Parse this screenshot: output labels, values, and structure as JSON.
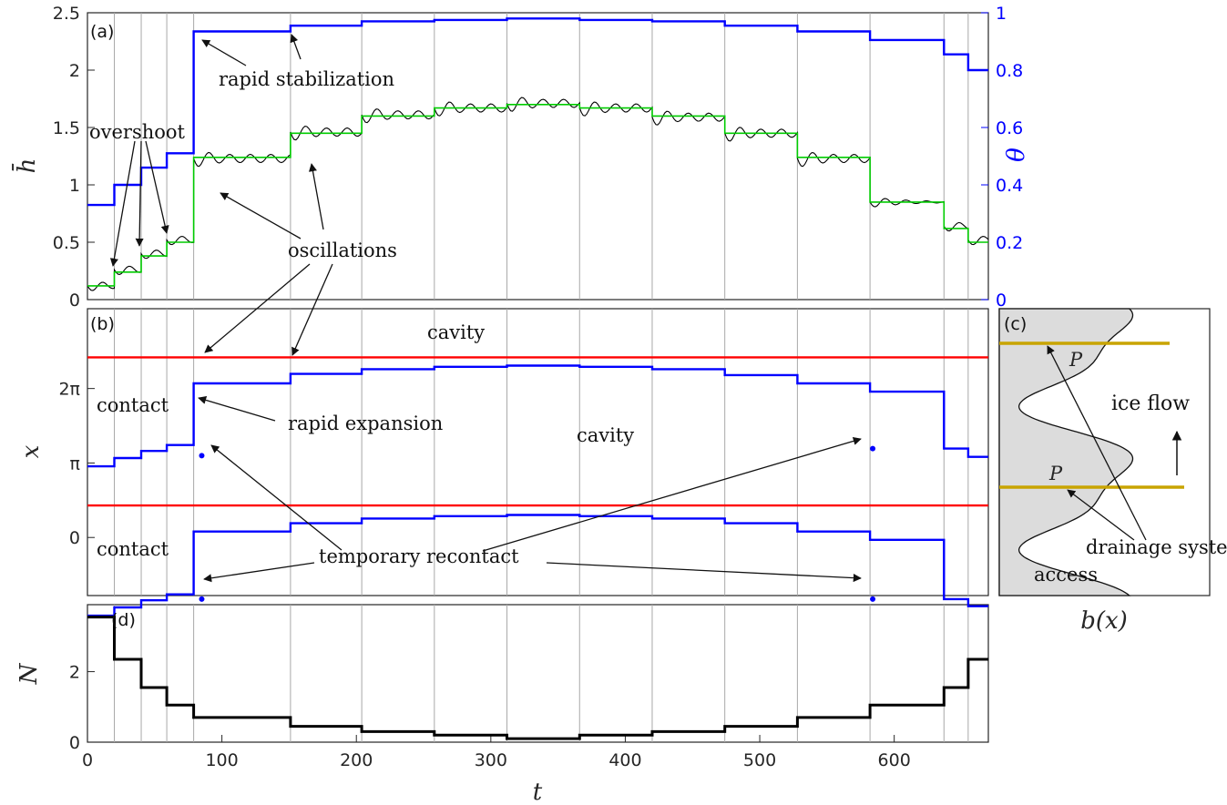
{
  "chart_data": [
    {
      "panel": "(a)",
      "type": "line",
      "xlabel": "",
      "ylabel": "h̄",
      "ylabel_right": "θ",
      "xlim": [
        0,
        670
      ],
      "ylim": [
        0,
        2.5
      ],
      "ylim_right": [
        0,
        1
      ],
      "yticks": [
        "0",
        "0.5",
        "1",
        "1.5",
        "2",
        "2.5"
      ],
      "yticks_right": [
        "0",
        "0.2",
        "0.4",
        "0.6",
        "0.8",
        "1"
      ],
      "switch_times": [
        20,
        40,
        59,
        79,
        151,
        204,
        258,
        312,
        366,
        420,
        474,
        528,
        582,
        637,
        655
      ],
      "series": [
        {
          "color": "#0000ff",
          "axis": "right",
          "steps": [
            {
              "t0": 0,
              "t1": 20,
              "v": 0.33
            },
            {
              "t0": 20,
              "t1": 40,
              "v": 0.4
            },
            {
              "t0": 40,
              "t1": 59,
              "v": 0.46
            },
            {
              "t0": 59,
              "t1": 79,
              "v": 0.51
            },
            {
              "t0": 79,
              "t1": 151,
              "v": 0.935
            },
            {
              "t0": 151,
              "t1": 204,
              "v": 0.955
            },
            {
              "t0": 204,
              "t1": 258,
              "v": 0.97
            },
            {
              "t0": 258,
              "t1": 312,
              "v": 0.975
            },
            {
              "t0": 312,
              "t1": 366,
              "v": 0.98
            },
            {
              "t0": 366,
              "t1": 420,
              "v": 0.975
            },
            {
              "t0": 420,
              "t1": 474,
              "v": 0.97
            },
            {
              "t0": 474,
              "t1": 528,
              "v": 0.955
            },
            {
              "t0": 528,
              "t1": 582,
              "v": 0.935
            },
            {
              "t0": 582,
              "t1": 637,
              "v": 0.905
            },
            {
              "t0": 637,
              "t1": 655,
              "v": 0.855
            },
            {
              "t0": 655,
              "t1": 670,
              "v": 0.8
            }
          ]
        },
        {
          "color": "#00cc00",
          "axis": "left",
          "steps": [
            {
              "t0": 0,
              "t1": 20,
              "v": 0.12
            },
            {
              "t0": 20,
              "t1": 40,
              "v": 0.24
            },
            {
              "t0": 40,
              "t1": 59,
              "v": 0.38
            },
            {
              "t0": 59,
              "t1": 79,
              "v": 0.5
            },
            {
              "t0": 79,
              "t1": 151,
              "v": 1.24
            },
            {
              "t0": 151,
              "t1": 204,
              "v": 1.45
            },
            {
              "t0": 204,
              "t1": 258,
              "v": 1.6
            },
            {
              "t0": 258,
              "t1": 312,
              "v": 1.67
            },
            {
              "t0": 312,
              "t1": 366,
              "v": 1.7
            },
            {
              "t0": 366,
              "t1": 420,
              "v": 1.67
            },
            {
              "t0": 420,
              "t1": 474,
              "v": 1.6
            },
            {
              "t0": 474,
              "t1": 528,
              "v": 1.45
            },
            {
              "t0": 528,
              "t1": 582,
              "v": 1.24
            },
            {
              "t0": 582,
              "t1": 637,
              "v": 0.85
            },
            {
              "t0": 637,
              "t1": 655,
              "v": 0.62
            },
            {
              "t0": 655,
              "t1": 670,
              "v": 0.5
            }
          ]
        },
        {
          "color": "#000000",
          "axis": "left",
          "note_oscillating_around_green": true,
          "steps": [
            {
              "t0": 0,
              "t1": 20,
              "v": 0.12
            },
            {
              "t0": 20,
              "t1": 40,
              "v": 0.26
            },
            {
              "t0": 40,
              "t1": 59,
              "v": 0.4
            },
            {
              "t0": 59,
              "t1": 79,
              "v": 0.52
            },
            {
              "t0": 79,
              "t1": 151,
              "v": 1.23
            },
            {
              "t0": 151,
              "t1": 204,
              "v": 1.46
            },
            {
              "t0": 204,
              "t1": 258,
              "v": 1.61
            },
            {
              "t0": 258,
              "t1": 312,
              "v": 1.67
            },
            {
              "t0": 312,
              "t1": 366,
              "v": 1.71
            },
            {
              "t0": 366,
              "t1": 420,
              "v": 1.67
            },
            {
              "t0": 420,
              "t1": 474,
              "v": 1.59
            },
            {
              "t0": 474,
              "t1": 528,
              "v": 1.45
            },
            {
              "t0": 528,
              "t1": 582,
              "v": 1.23
            },
            {
              "t0": 582,
              "t1": 637,
              "v": 0.85
            },
            {
              "t0": 637,
              "t1": 655,
              "v": 0.64
            },
            {
              "t0": 655,
              "t1": 670,
              "v": 0.52
            }
          ]
        }
      ],
      "annotations": [
        "overshoot",
        "rapid stabilization",
        "oscillations"
      ]
    },
    {
      "panel": "(b)",
      "type": "line",
      "xlabel": "",
      "ylabel": "x",
      "xlim": [
        0,
        670
      ],
      "ylim": [
        -2.45,
        9.65
      ],
      "yticks": [
        "0",
        "π",
        "2π"
      ],
      "series": [
        {
          "color": "#ff0000",
          "name": "",
          "values_desc": "upper contact edge",
          "steps": [
            {
              "t0": 0,
              "t1": 670,
              "v": 7.6
            }
          ]
        },
        {
          "color": "#0000ff",
          "name": "",
          "values_desc": "upper cavity edge",
          "steps": [
            {
              "t0": 0,
              "t1": 20,
              "v": 3.0
            },
            {
              "t0": 20,
              "t1": 40,
              "v": 3.35
            },
            {
              "t0": 40,
              "t1": 59,
              "v": 3.65
            },
            {
              "t0": 59,
              "t1": 79,
              "v": 3.9
            },
            {
              "t0": 79,
              "t1": 151,
              "v": 6.5
            },
            {
              "t0": 151,
              "t1": 204,
              "v": 6.9
            },
            {
              "t0": 204,
              "t1": 258,
              "v": 7.1
            },
            {
              "t0": 258,
              "t1": 312,
              "v": 7.2
            },
            {
              "t0": 312,
              "t1": 366,
              "v": 7.25
            },
            {
              "t0": 366,
              "t1": 420,
              "v": 7.2
            },
            {
              "t0": 420,
              "t1": 474,
              "v": 7.1
            },
            {
              "t0": 474,
              "t1": 528,
              "v": 6.85
            },
            {
              "t0": 528,
              "t1": 582,
              "v": 6.5
            },
            {
              "t0": 582,
              "t1": 637,
              "v": 6.15
            },
            {
              "t0": 637,
              "t1": 655,
              "v": 3.75
            },
            {
              "t0": 655,
              "t1": 670,
              "v": 3.4
            }
          ]
        },
        {
          "color": "#ff0000",
          "name": "",
          "values_desc": "lower contact edge",
          "steps": [
            {
              "t0": 0,
              "t1": 670,
              "v": 1.35
            }
          ]
        },
        {
          "color": "#0000ff",
          "name": "",
          "values_desc": "lower cavity edge",
          "steps": [
            {
              "t0": 0,
              "t1": 20,
              "v": -3.3
            },
            {
              "t0": 20,
              "t1": 40,
              "v": -2.95
            },
            {
              "t0": 40,
              "t1": 59,
              "v": -2.65
            },
            {
              "t0": 59,
              "t1": 79,
              "v": -2.4
            },
            {
              "t0": 79,
              "t1": 151,
              "v": 0.25
            },
            {
              "t0": 151,
              "t1": 204,
              "v": 0.6
            },
            {
              "t0": 204,
              "t1": 258,
              "v": 0.8
            },
            {
              "t0": 258,
              "t1": 312,
              "v": 0.9
            },
            {
              "t0": 312,
              "t1": 366,
              "v": 0.95
            },
            {
              "t0": 366,
              "t1": 420,
              "v": 0.9
            },
            {
              "t0": 420,
              "t1": 474,
              "v": 0.8
            },
            {
              "t0": 474,
              "t1": 528,
              "v": 0.6
            },
            {
              "t0": 528,
              "t1": 582,
              "v": 0.25
            },
            {
              "t0": 582,
              "t1": 637,
              "v": -0.1
            },
            {
              "t0": 637,
              "t1": 655,
              "v": -2.6
            },
            {
              "t0": 655,
              "t1": 670,
              "v": -2.9
            }
          ]
        }
      ],
      "annotations": [
        "cavity",
        "cavity",
        "contact",
        "contact",
        "rapid expansion",
        "temporary recontact"
      ]
    },
    {
      "panel": "(c)",
      "type": "diagram",
      "xlabel": "b(x)",
      "annotations": [
        "ice flow",
        "P",
        "P",
        "drainage system",
        "access"
      ]
    },
    {
      "panel": "(d)",
      "type": "line",
      "xlabel": "t",
      "ylabel": "N",
      "xlim": [
        0,
        670
      ],
      "ylim": [
        0,
        3.9
      ],
      "xticks": [
        "0",
        "100",
        "200",
        "300",
        "400",
        "500",
        "600"
      ],
      "yticks": [
        "0",
        "2"
      ],
      "series": [
        {
          "color": "#000000",
          "steps": [
            {
              "t0": 0,
              "t1": 20,
              "v": 3.55
            },
            {
              "t0": 20,
              "t1": 40,
              "v": 2.35
            },
            {
              "t0": 40,
              "t1": 59,
              "v": 1.55
            },
            {
              "t0": 59,
              "t1": 79,
              "v": 1.05
            },
            {
              "t0": 79,
              "t1": 151,
              "v": 0.7
            },
            {
              "t0": 151,
              "t1": 204,
              "v": 0.45
            },
            {
              "t0": 204,
              "t1": 258,
              "v": 0.3
            },
            {
              "t0": 258,
              "t1": 312,
              "v": 0.2
            },
            {
              "t0": 312,
              "t1": 366,
              "v": 0.1
            },
            {
              "t0": 366,
              "t1": 420,
              "v": 0.2
            },
            {
              "t0": 420,
              "t1": 474,
              "v": 0.3
            },
            {
              "t0": 474,
              "t1": 528,
              "v": 0.45
            },
            {
              "t0": 528,
              "t1": 582,
              "v": 0.7
            },
            {
              "t0": 582,
              "t1": 637,
              "v": 1.05
            },
            {
              "t0": 637,
              "t1": 655,
              "v": 1.55
            },
            {
              "t0": 655,
              "t1": 670,
              "v": 2.35
            }
          ]
        }
      ]
    }
  ],
  "text": {
    "panel_a": "(a)",
    "panel_b": "(b)",
    "panel_c": "(c)",
    "panel_d": "(d)",
    "overshoot": "overshoot",
    "rapid_stabilization": "rapid stabilization",
    "oscillations": "oscillations",
    "cavity_top": "cavity",
    "cavity_mid": "cavity",
    "contact_top": "contact",
    "contact_bottom": "contact",
    "rapid_expansion": "rapid expansion",
    "temporary_recontact": "temporary recontact",
    "ice_flow": "ice flow",
    "p_upper": "P",
    "p_lower": "P",
    "drainage_system": "drainage system",
    "access": "access",
    "ylabel_a": "h̄",
    "ylabel_a_right": "θ",
    "ylabel_b": "x",
    "ylabel_d": "N",
    "xlabel_d": "t",
    "xlabel_c": "b(x)"
  },
  "colors": {
    "theta_blue": "#0000ff",
    "h_green": "#00cc00",
    "h_black": "#000000",
    "contact_red": "#ff0000",
    "drainage_gold": "#c8a400",
    "bed_fill": "#dcdcdc"
  }
}
